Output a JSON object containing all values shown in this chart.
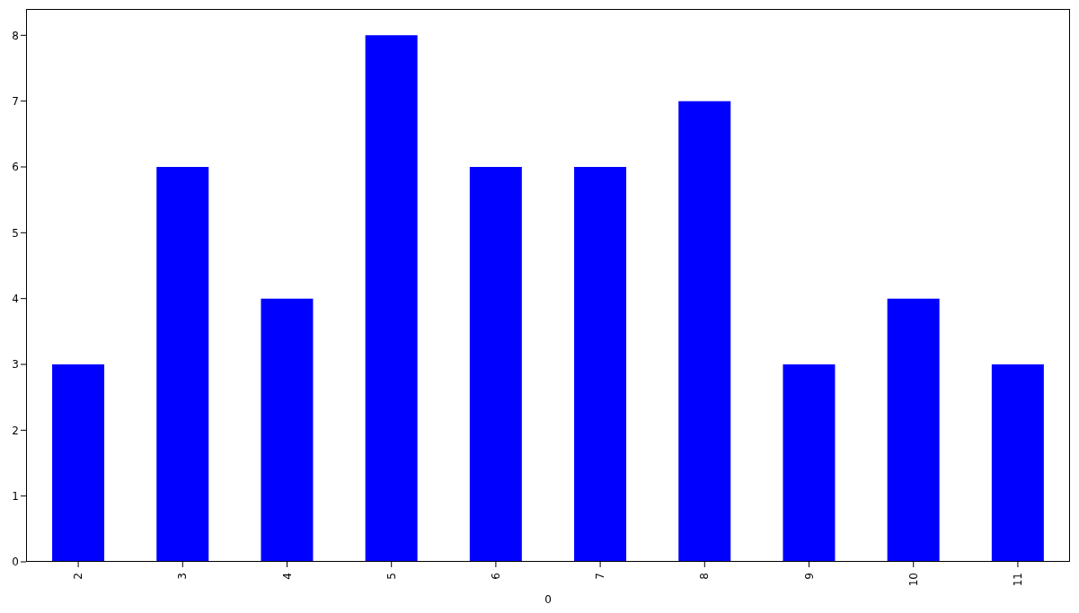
{
  "chart_data": {
    "type": "bar",
    "xlabel": "0",
    "categories": [
      "2",
      "3",
      "4",
      "5",
      "6",
      "7",
      "8",
      "9",
      "10",
      "11"
    ],
    "values": [
      3,
      6,
      4,
      8,
      6,
      6,
      7,
      3,
      4,
      3
    ],
    "color": "#0000ff",
    "ylim": [
      0,
      8.4
    ],
    "yticks": [
      0,
      1,
      2,
      3,
      4,
      5,
      6,
      7,
      8
    ]
  }
}
